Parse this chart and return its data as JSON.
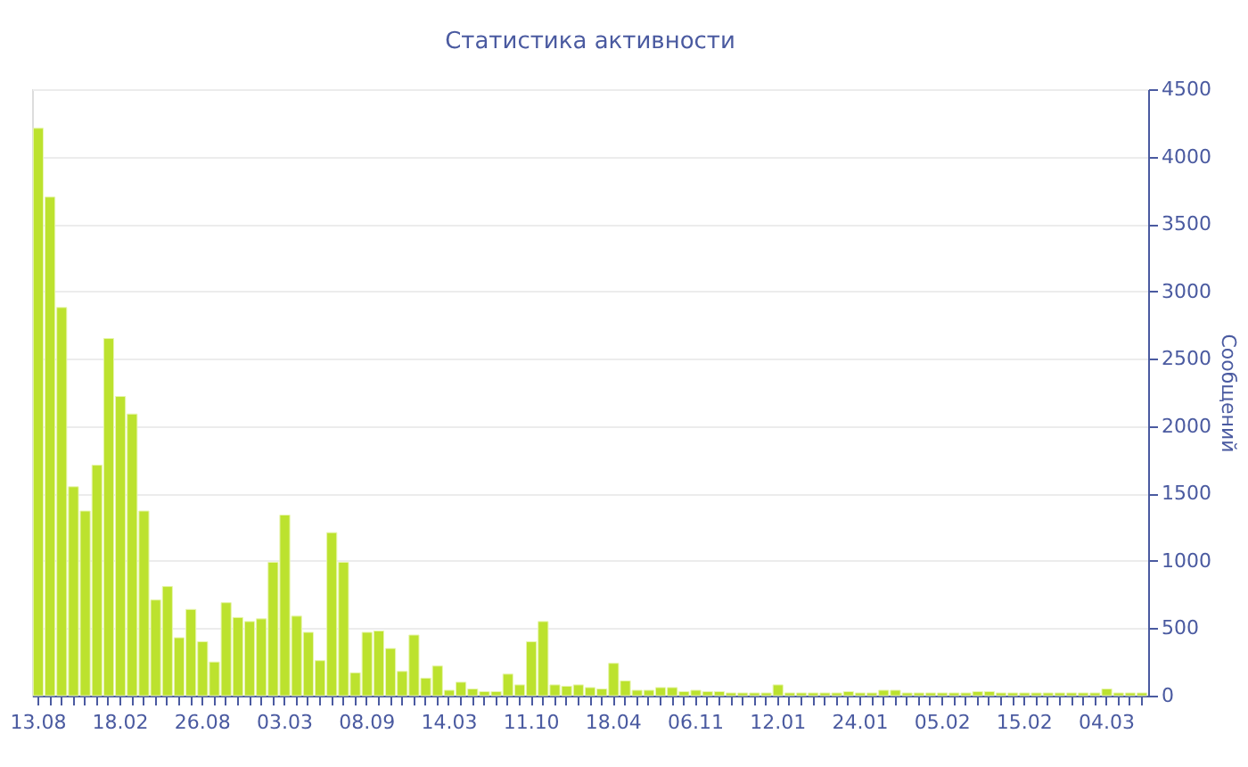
{
  "chart_data": {
    "type": "bar",
    "title": "Статистика активности",
    "ylabel": "Сообщений",
    "categories": [
      "13.08",
      null,
      null,
      null,
      null,
      null,
      null,
      "18.02",
      null,
      null,
      null,
      null,
      null,
      null,
      "26.08",
      null,
      null,
      null,
      null,
      null,
      null,
      "03.03",
      null,
      null,
      null,
      null,
      null,
      null,
      "08.09",
      null,
      null,
      null,
      null,
      null,
      null,
      "14.03",
      null,
      null,
      null,
      null,
      null,
      null,
      "11.10",
      null,
      null,
      null,
      null,
      null,
      null,
      "18.04",
      null,
      null,
      null,
      null,
      null,
      null,
      "06.11",
      null,
      null,
      null,
      null,
      null,
      null,
      "12.01",
      null,
      null,
      null,
      null,
      null,
      null,
      "24.01",
      null,
      null,
      null,
      null,
      null,
      null,
      "05.02",
      null,
      null,
      null,
      null,
      null,
      null,
      "15.02",
      null,
      null,
      null,
      null,
      null,
      null,
      "04.03",
      null,
      null,
      null
    ],
    "values": [
      4210,
      3700,
      2880,
      1550,
      1370,
      1710,
      2650,
      2220,
      2090,
      1370,
      710,
      810,
      430,
      640,
      400,
      250,
      690,
      580,
      550,
      570,
      990,
      1340,
      590,
      470,
      260,
      1210,
      990,
      170,
      470,
      480,
      350,
      180,
      450,
      130,
      220,
      40,
      100,
      50,
      30,
      30,
      160,
      80,
      400,
      550,
      80,
      70,
      80,
      60,
      50,
      240,
      110,
      40,
      40,
      60,
      60,
      30,
      40,
      30,
      30,
      20,
      20,
      20,
      20,
      80,
      20,
      20,
      20,
      20,
      20,
      30,
      20,
      20,
      40,
      40,
      20,
      20,
      20,
      20,
      20,
      20,
      30,
      30,
      20,
      20,
      20,
      20,
      20,
      20,
      20,
      20,
      20,
      50,
      20,
      20,
      20
    ],
    "color": "#bce22e",
    "ylim": [
      0,
      4500
    ],
    "yticks": [
      0,
      500,
      1000,
      1500,
      2000,
      2500,
      3000,
      3500,
      4000,
      4500
    ],
    "grid": "y"
  }
}
